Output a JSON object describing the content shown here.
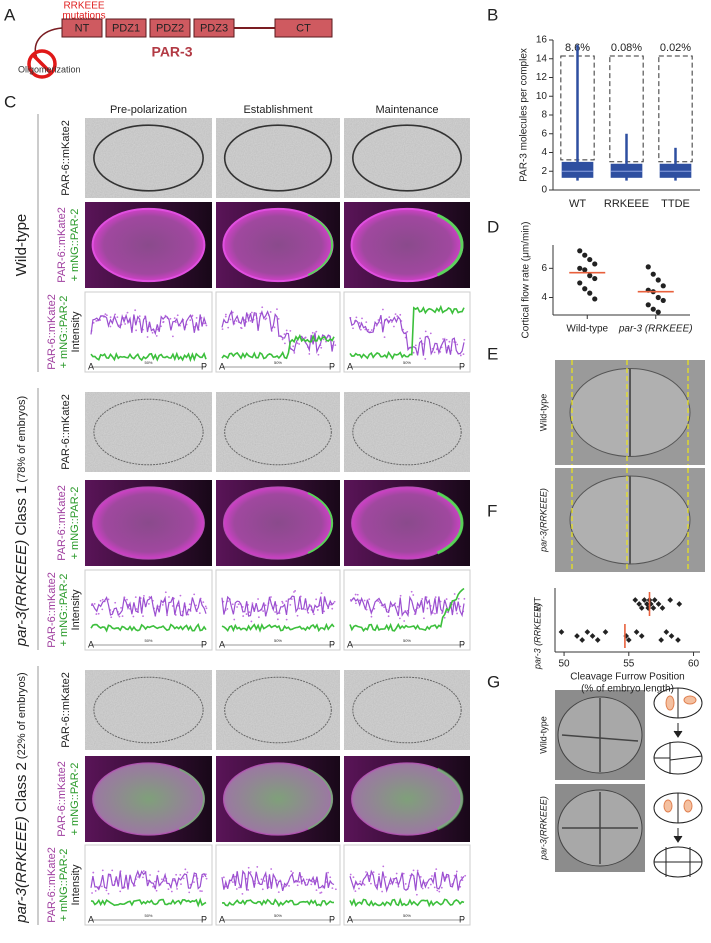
{
  "panel_labels": [
    "A",
    "B",
    "C",
    "D",
    "E",
    "F",
    "G"
  ],
  "panel_a": {
    "mutation_label": [
      "RRKEEE",
      "mutations"
    ],
    "asterisks": [
      "*",
      "**"
    ],
    "domains": [
      "NT",
      "PDZ1",
      "PDZ2",
      "PDZ3",
      "CT"
    ],
    "protein": "PAR-3",
    "oligomerization": "Oligomerization"
  },
  "panel_c": {
    "columns": [
      "Pre-polarization",
      "Establishment",
      "Maintenance"
    ],
    "groups": [
      {
        "name": "Wild-type"
      },
      {
        "name": "par-3(RRKEEE)",
        "class": " Class 1",
        "fraction": " (78% of embryos)"
      },
      {
        "name": "par-3(RRKEEE)",
        "class": " Class 2",
        "fraction": " (22% of embryos)"
      }
    ],
    "rows": {
      "gray": "PAR-6::mKate2",
      "merge": [
        "PAR-6::mKate2",
        "+ mNG::PAR-2"
      ],
      "intensity": [
        "PAR-6::mKate2",
        "+ mNG::PAR-2",
        "Intensity"
      ]
    },
    "axis": {
      "start": "A",
      "mid": "50%",
      "end": "P"
    }
  },
  "panel_e": {
    "rows": [
      "Wild-type",
      "par-3(RRKEEE)"
    ]
  },
  "panel_g": {
    "rows": [
      "Wild-type",
      "par-3(RRKEEE)"
    ]
  },
  "chart_data": [
    {
      "type": "box",
      "ylabel": "PAR-3 molecules per complex",
      "categories": [
        "WT",
        "RRKEEE",
        "TTDE"
      ],
      "percent_labels": [
        "8.6%",
        "0.08%",
        "0.02%"
      ],
      "whisker_low": [
        1,
        1,
        1
      ],
      "q1": [
        1.3,
        1.3,
        1.3
      ],
      "median": [
        2,
        2,
        2
      ],
      "q3": [
        3,
        2.8,
        2.8
      ],
      "whisker_high": [
        15.5,
        6,
        4.5
      ],
      "color": "#2e4fa0",
      "ylim": [
        0,
        16
      ],
      "yticks": [
        0,
        2,
        4,
        6,
        8,
        10,
        12,
        14,
        16
      ]
    },
    {
      "type": "strip",
      "ylabel": "Cortical flow rate (μm/min)",
      "categories": [
        "Wild-type",
        "par-3 (RRKEEE)"
      ],
      "series": [
        {
          "values": [
            7.2,
            6.9,
            6.6,
            6.3,
            6.0,
            5.9,
            5.5,
            5.3,
            5.0,
            4.6,
            4.3,
            3.9
          ]
        },
        {
          "values": [
            6.1,
            5.6,
            5.2,
            4.8,
            4.5,
            4.4,
            4.0,
            3.8,
            3.5,
            3.2,
            3.0
          ]
        }
      ],
      "means": [
        5.7,
        4.4
      ],
      "color": "#222222",
      "mean_color": "#e8603c",
      "ylim": [
        2.8,
        7.6
      ],
      "yticks": [
        4,
        6
      ]
    },
    {
      "type": "strip_h",
      "xlabel": [
        "Cleavage Furrow Position",
        "(% of embryo length)"
      ],
      "categories": [
        "WT",
        "par-3 (RRKEEE)"
      ],
      "series": [
        {
          "values": [
            55.5,
            55.8,
            56.0,
            56.2,
            56.4,
            56.5,
            56.6,
            56.7,
            56.9,
            57.0,
            57.3,
            57.6,
            58.2,
            58.9
          ]
        },
        {
          "values": [
            49.8,
            51.0,
            51.4,
            51.8,
            52.2,
            52.6,
            53.2,
            54.8,
            55.0,
            55.6,
            56.0,
            57.5,
            57.9,
            58.3,
            58.8
          ]
        }
      ],
      "means": [
        56.6,
        54.7
      ],
      "color": "#222222",
      "mean_color": "#e8603c",
      "xlim": [
        49.3,
        60.5
      ],
      "xticks": [
        50,
        55,
        60
      ]
    }
  ]
}
